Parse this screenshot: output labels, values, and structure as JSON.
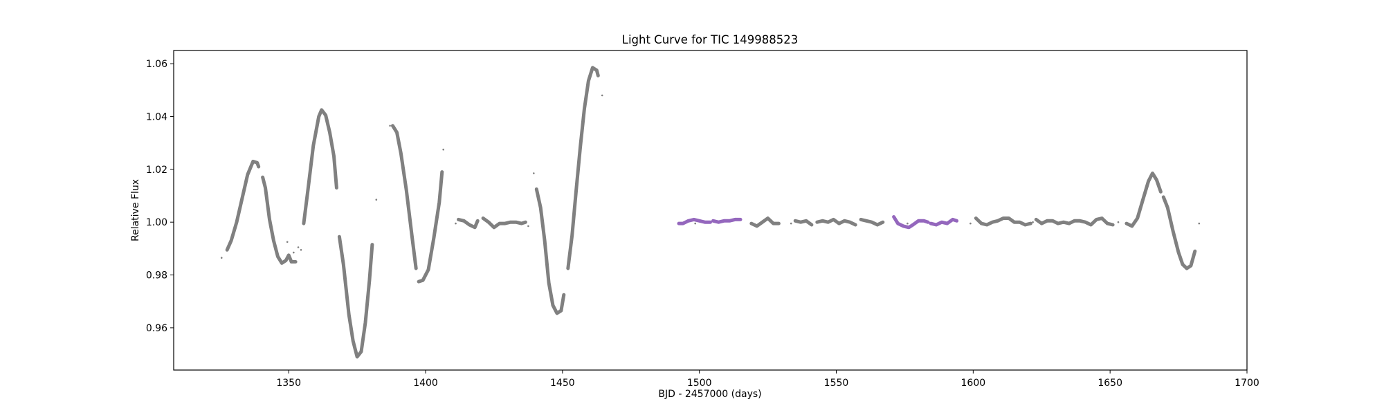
{
  "chart_data": {
    "type": "scatter",
    "title": "Light Curve for TIC 149988523",
    "xlabel": "BJD - 2457000 (days)",
    "ylabel": "Relative Flux",
    "xlim": [
      1308,
      1700
    ],
    "ylim": [
      0.944,
      1.065
    ],
    "xticks": [
      1350,
      1400,
      1450,
      1500,
      1550,
      1600,
      1650,
      1700
    ],
    "xtick_labels": [
      "1350",
      "1400",
      "1450",
      "1500",
      "1550",
      "1600",
      "1650",
      "1700"
    ],
    "yticks": [
      0.96,
      0.98,
      1.0,
      1.02,
      1.04,
      1.06
    ],
    "ytick_labels": [
      "0.96",
      "0.98",
      "1.00",
      "1.02",
      "1.04",
      "1.06"
    ],
    "grid": false,
    "legend": "none",
    "colors": {
      "base": "#808080",
      "highlight": "#9467bd"
    },
    "series": [
      {
        "color": "#808080",
        "segments": [
          [
            [
              1327.5,
              0.9895
            ],
            [
              1329,
              0.993
            ],
            [
              1331,
              1.0
            ],
            [
              1333,
              1.009
            ],
            [
              1335,
              1.018
            ],
            [
              1337,
              1.023
            ],
            [
              1338.5,
              1.0225
            ],
            [
              1339,
              1.021
            ]
          ],
          [
            [
              1340.5,
              1.017
            ],
            [
              1341.5,
              1.013
            ],
            [
              1343,
              1.001
            ],
            [
              1344.5,
              0.993
            ],
            [
              1346,
              0.987
            ],
            [
              1347.5,
              0.9845
            ],
            [
              1349,
              0.9855
            ],
            [
              1350,
              0.9875
            ],
            [
              1351,
              0.985
            ],
            [
              1352.5,
              0.985
            ]
          ],
          [
            [
              1355.5,
              0.9995
            ],
            [
              1357,
              1.012
            ],
            [
              1359,
              1.029
            ],
            [
              1361,
              1.04
            ],
            [
              1362,
              1.0425
            ],
            [
              1363.5,
              1.0405
            ],
            [
              1365,
              1.034
            ],
            [
              1366.5,
              1.025
            ],
            [
              1367.5,
              1.013
            ]
          ],
          [
            [
              1368.5,
              0.9945
            ],
            [
              1370,
              0.984
            ],
            [
              1372,
              0.965
            ],
            [
              1373.5,
              0.955
            ],
            [
              1375,
              0.949
            ],
            [
              1376.5,
              0.951
            ],
            [
              1378,
              0.962
            ],
            [
              1379.5,
              0.978
            ],
            [
              1380.5,
              0.9915
            ]
          ],
          [
            [
              1388,
              1.0365
            ],
            [
              1389.5,
              1.034
            ],
            [
              1391,
              1.026
            ],
            [
              1393,
              1.012
            ],
            [
              1395,
              0.995
            ],
            [
              1396.5,
              0.9825
            ]
          ],
          [
            [
              1397.5,
              0.9775
            ],
            [
              1399,
              0.978
            ],
            [
              1401,
              0.982
            ],
            [
              1403,
              0.994
            ],
            [
              1405,
              1.0075
            ],
            [
              1406,
              1.019
            ]
          ],
          [
            [
              1412,
              1.001
            ],
            [
              1414,
              1.0005
            ],
            [
              1416,
              0.999
            ],
            [
              1418,
              0.998
            ],
            [
              1419,
              1.0005
            ]
          ],
          [
            [
              1421,
              1.0015
            ],
            [
              1423,
              1.0
            ],
            [
              1425,
              0.998
            ],
            [
              1427,
              0.9995
            ],
            [
              1429,
              0.9995
            ],
            [
              1431,
              1.0
            ],
            [
              1433,
              1.0
            ],
            [
              1435,
              0.9995
            ],
            [
              1436.5,
              1.0
            ]
          ],
          [
            [
              1440.5,
              1.0125
            ],
            [
              1442,
              1.0055
            ],
            [
              1443.5,
              0.993
            ],
            [
              1445,
              0.977
            ],
            [
              1446.5,
              0.9685
            ],
            [
              1448,
              0.9655
            ],
            [
              1449.5,
              0.9665
            ],
            [
              1450.5,
              0.9725
            ]
          ],
          [
            [
              1452,
              0.9825
            ],
            [
              1453.5,
              0.995
            ],
            [
              1455,
              1.012
            ],
            [
              1456.5,
              1.0285
            ],
            [
              1458,
              1.043
            ],
            [
              1459.5,
              1.0535
            ],
            [
              1461,
              1.0585
            ],
            [
              1462.5,
              1.0575
            ],
            [
              1463,
              1.0555
            ]
          ],
          [
            [
              1519,
              0.9995
            ],
            [
              1521,
              0.9985
            ],
            [
              1523,
              1.0
            ],
            [
              1525,
              1.0015
            ],
            [
              1527,
              0.9995
            ],
            [
              1529,
              0.9995
            ]
          ],
          [
            [
              1535,
              1.0005
            ],
            [
              1537,
              1.0
            ],
            [
              1539,
              1.0005
            ],
            [
              1541,
              0.999
            ]
          ],
          [
            [
              1543,
              1.0
            ],
            [
              1545,
              1.0005
            ],
            [
              1547,
              1.0
            ],
            [
              1549,
              1.001
            ],
            [
              1551,
              0.9995
            ],
            [
              1553,
              1.0005
            ],
            [
              1555,
              1.0
            ],
            [
              1557,
              0.999
            ]
          ],
          [
            [
              1559,
              1.001
            ],
            [
              1561,
              1.0005
            ],
            [
              1563,
              1.0
            ],
            [
              1565,
              0.999
            ],
            [
              1567,
              1.0
            ]
          ],
          [
            [
              1601,
              1.0015
            ],
            [
              1603,
              0.9995
            ],
            [
              1605,
              0.999
            ],
            [
              1607,
              1.0
            ],
            [
              1609,
              1.0005
            ],
            [
              1611,
              1.0015
            ],
            [
              1613,
              1.0015
            ],
            [
              1615,
              1.0
            ],
            [
              1617,
              1.0
            ],
            [
              1619,
              0.999
            ],
            [
              1621,
              0.9995
            ]
          ],
          [
            [
              1623,
              1.001
            ],
            [
              1625,
              0.9995
            ],
            [
              1627,
              1.0005
            ],
            [
              1629,
              1.0005
            ],
            [
              1631,
              0.9995
            ],
            [
              1633,
              1.0
            ],
            [
              1635,
              0.9995
            ],
            [
              1637,
              1.0005
            ],
            [
              1639,
              1.0005
            ],
            [
              1641,
              1.0
            ],
            [
              1643,
              0.999
            ],
            [
              1645,
              1.001
            ],
            [
              1647,
              1.0015
            ],
            [
              1649,
              0.9995
            ],
            [
              1651,
              0.999
            ]
          ],
          [
            [
              1656,
              0.9995
            ],
            [
              1658,
              0.9985
            ],
            [
              1660,
              1.0015
            ],
            [
              1662,
              1.0085
            ],
            [
              1664,
              1.0155
            ],
            [
              1665.5,
              1.0185
            ],
            [
              1667,
              1.016
            ],
            [
              1668.5,
              1.0115
            ]
          ],
          [
            [
              1669.5,
              1.0095
            ],
            [
              1671,
              1.0055
            ],
            [
              1673,
              0.9965
            ],
            [
              1675,
              0.9885
            ],
            [
              1676.5,
              0.984
            ],
            [
              1678,
              0.9825
            ],
            [
              1679.5,
              0.9835
            ],
            [
              1681,
              0.989
            ]
          ]
        ],
        "scatter": [
          [
            1325.5,
            0.9865
          ],
          [
            1349.5,
            0.9925
          ],
          [
            1351.8,
            0.9885
          ],
          [
            1353.5,
            0.9905
          ],
          [
            1354.5,
            0.9895
          ],
          [
            1382,
            1.0085
          ],
          [
            1387,
            1.0365
          ],
          [
            1406.5,
            1.0275
          ],
          [
            1411,
            0.9995
          ],
          [
            1437.5,
            0.9985
          ],
          [
            1439.5,
            1.0185
          ],
          [
            1464.5,
            1.048
          ],
          [
            1498.5,
            0.9995
          ],
          [
            1533.5,
            0.9995
          ],
          [
            1576,
            0.9995
          ],
          [
            1599,
            0.9995
          ],
          [
            1621.8,
            1.0
          ],
          [
            1653,
            1.0
          ],
          [
            1682.5,
            0.9995
          ]
        ]
      },
      {
        "color": "#9467bd",
        "segments": [
          [
            [
              1492.5,
              0.9995
            ],
            [
              1494,
              0.9995
            ],
            [
              1496,
              1.0005
            ],
            [
              1498,
              1.001
            ],
            [
              1500,
              1.0005
            ],
            [
              1502,
              1.0
            ],
            [
              1504,
              1.0
            ]
          ],
          [
            [
              1505,
              1.0005
            ],
            [
              1507,
              1.0
            ],
            [
              1509,
              1.0005
            ],
            [
              1511,
              1.0005
            ],
            [
              1513,
              1.001
            ],
            [
              1515,
              1.001
            ]
          ],
          [
            [
              1571,
              1.002
            ],
            [
              1572.5,
              0.9995
            ],
            [
              1574.5,
              0.9985
            ],
            [
              1576.5,
              0.998
            ],
            [
              1578,
              0.999
            ],
            [
              1580,
              1.0005
            ],
            [
              1582,
              1.0005
            ],
            [
              1583.5,
              1.0
            ]
          ],
          [
            [
              1584.5,
              0.9995
            ],
            [
              1586.5,
              0.999
            ],
            [
              1588.5,
              1.0
            ],
            [
              1590.5,
              0.9995
            ],
            [
              1592.5,
              1.001
            ],
            [
              1594,
              1.0005
            ]
          ]
        ],
        "scatter": []
      }
    ]
  }
}
